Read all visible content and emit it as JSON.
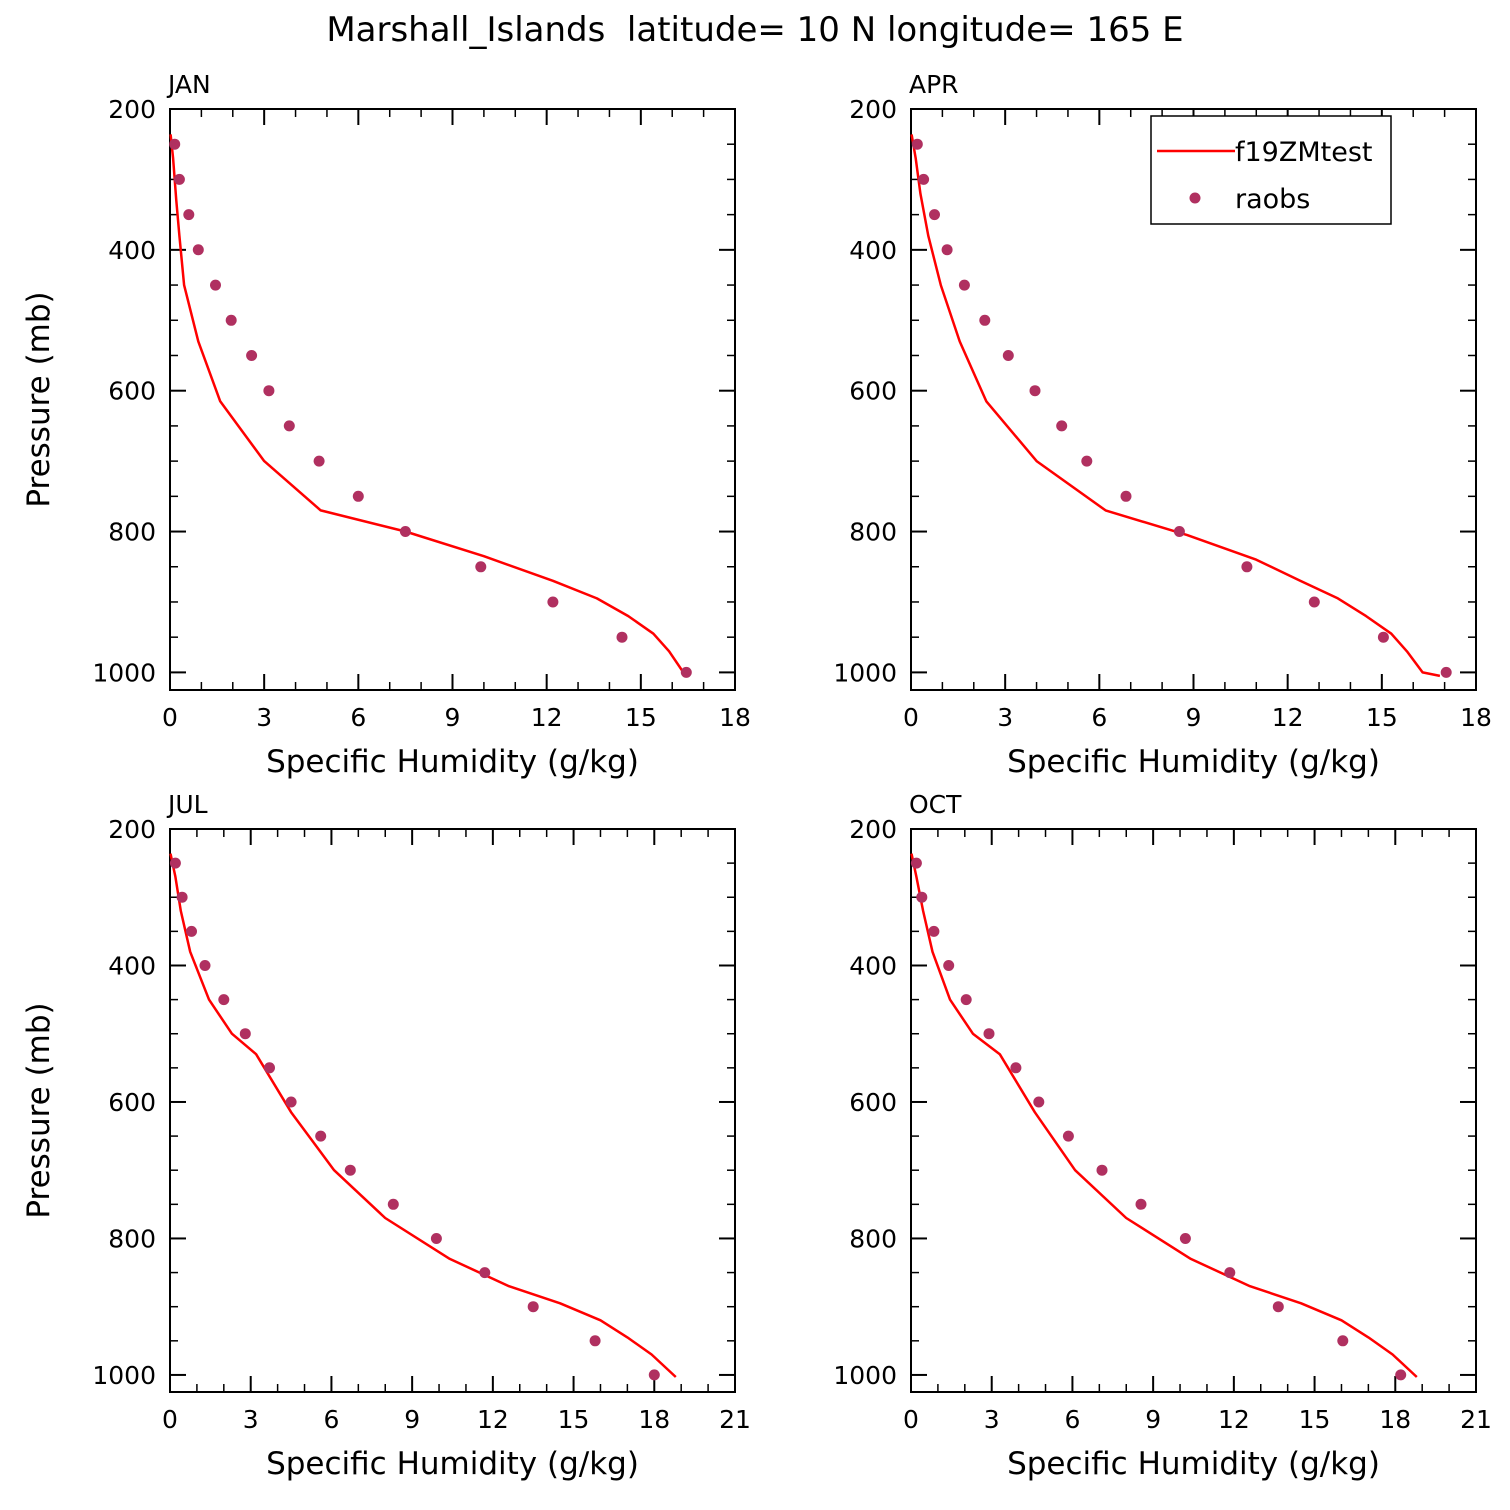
{
  "title": "Marshall_Islands  latitude= 10 N longitude= 165 E",
  "legend": {
    "model": "f19ZMtest",
    "obs": "raobs"
  },
  "colors": {
    "model": "#ff0000",
    "obs": "#b03060",
    "axis": "#000000"
  },
  "chart_data": [
    {
      "type": "line",
      "panel": "JAN",
      "xlabel": "Specific Humidity (g/kg)",
      "ylabel": "Pressure (mb)",
      "xlim": [
        0,
        18
      ],
      "ylim": [
        1025,
        200
      ],
      "xticks": [
        0,
        3,
        6,
        9,
        12,
        15,
        18
      ],
      "yticks": [
        200,
        400,
        600,
        800,
        1000
      ],
      "series": [
        {
          "name": "f19ZMtest",
          "style": "line",
          "x": [
            0.02,
            0.1,
            0.2,
            0.3,
            0.45,
            0.9,
            1.6,
            3.0,
            4.8,
            7.5,
            10.0,
            12.2,
            13.6,
            14.6,
            15.4,
            15.9,
            16.4
          ],
          "y": [
            236,
            270,
            330,
            380,
            450,
            530,
            615,
            700,
            770,
            800,
            835,
            870,
            895,
            920,
            945,
            970,
            1003
          ]
        },
        {
          "name": "raobs",
          "style": "markers",
          "x": [
            0.15,
            0.3,
            0.6,
            0.9,
            1.45,
            1.95,
            2.6,
            3.15,
            3.8,
            4.75,
            6.0,
            7.5,
            9.9,
            12.2,
            14.4,
            16.45
          ],
          "y": [
            250,
            300,
            350,
            400,
            450,
            500,
            550,
            600,
            650,
            700,
            750,
            800,
            850,
            900,
            950,
            1000
          ]
        }
      ]
    },
    {
      "type": "line",
      "panel": "APR",
      "xlabel": "Specific Humidity (g/kg)",
      "ylabel": "",
      "xlim": [
        0,
        18
      ],
      "ylim": [
        1025,
        200
      ],
      "xticks": [
        0,
        3,
        6,
        9,
        12,
        15,
        18
      ],
      "yticks": [
        200,
        400,
        600,
        800,
        1000
      ],
      "legend": true,
      "series": [
        {
          "name": "f19ZMtest",
          "style": "line",
          "x": [
            0.02,
            0.15,
            0.3,
            0.55,
            0.95,
            1.55,
            2.4,
            4.0,
            6.2,
            8.8,
            11.0,
            12.4,
            13.6,
            14.5,
            15.3,
            15.8,
            16.3,
            16.85
          ],
          "y": [
            236,
            270,
            320,
            380,
            450,
            530,
            615,
            700,
            770,
            805,
            840,
            870,
            895,
            920,
            945,
            970,
            1000,
            1005
          ]
        },
        {
          "name": "raobs",
          "style": "markers",
          "x": [
            0.2,
            0.4,
            0.75,
            1.15,
            1.7,
            2.35,
            3.1,
            3.95,
            4.8,
            5.6,
            6.85,
            8.55,
            10.7,
            12.85,
            15.05,
            17.05
          ],
          "y": [
            250,
            300,
            350,
            400,
            450,
            500,
            550,
            600,
            650,
            700,
            750,
            800,
            850,
            900,
            950,
            1000
          ]
        }
      ]
    },
    {
      "type": "line",
      "panel": "JUL",
      "xlabel": "Specific Humidity (g/kg)",
      "ylabel": "Pressure (mb)",
      "xlim": [
        0,
        21
      ],
      "ylim": [
        1025,
        200
      ],
      "xticks": [
        0,
        3,
        6,
        9,
        12,
        15,
        18,
        21
      ],
      "yticks": [
        200,
        400,
        600,
        800,
        1000
      ],
      "series": [
        {
          "name": "f19ZMtest",
          "style": "line",
          "x": [
            0.02,
            0.2,
            0.4,
            0.75,
            1.45,
            2.3,
            3.2,
            4.5,
            6.1,
            8.0,
            10.4,
            12.6,
            14.5,
            16.0,
            17.0,
            17.9,
            18.8
          ],
          "y": [
            236,
            270,
            320,
            380,
            450,
            500,
            530,
            615,
            700,
            770,
            830,
            870,
            895,
            920,
            945,
            970,
            1003
          ]
        },
        {
          "name": "raobs",
          "style": "markers",
          "x": [
            0.2,
            0.45,
            0.8,
            1.3,
            2.0,
            2.8,
            3.7,
            4.5,
            5.6,
            6.7,
            8.3,
            9.9,
            11.7,
            13.5,
            15.8,
            18.0
          ],
          "y": [
            250,
            300,
            350,
            400,
            450,
            500,
            550,
            600,
            650,
            700,
            750,
            800,
            850,
            900,
            950,
            1000
          ]
        }
      ]
    },
    {
      "type": "line",
      "panel": "OCT",
      "xlabel": "Specific Humidity (g/kg)",
      "ylabel": "",
      "xlim": [
        0,
        21
      ],
      "ylim": [
        1025,
        200
      ],
      "xticks": [
        0,
        3,
        6,
        9,
        12,
        15,
        18,
        21
      ],
      "yticks": [
        200,
        400,
        600,
        800,
        1000
      ],
      "series": [
        {
          "name": "f19ZMtest",
          "style": "line",
          "x": [
            0.02,
            0.2,
            0.45,
            0.8,
            1.45,
            2.3,
            3.3,
            4.6,
            6.1,
            8.0,
            10.4,
            12.6,
            14.5,
            16.0,
            17.0,
            17.9,
            18.8
          ],
          "y": [
            236,
            270,
            320,
            380,
            450,
            500,
            530,
            615,
            700,
            770,
            830,
            870,
            895,
            920,
            945,
            970,
            1003
          ]
        },
        {
          "name": "raobs",
          "style": "markers",
          "x": [
            0.2,
            0.4,
            0.85,
            1.4,
            2.05,
            2.9,
            3.9,
            4.75,
            5.85,
            7.1,
            8.55,
            10.2,
            11.85,
            13.65,
            16.05,
            18.2
          ],
          "y": [
            250,
            300,
            350,
            400,
            450,
            500,
            550,
            600,
            650,
            700,
            750,
            800,
            850,
            900,
            950,
            1000
          ]
        }
      ]
    }
  ]
}
